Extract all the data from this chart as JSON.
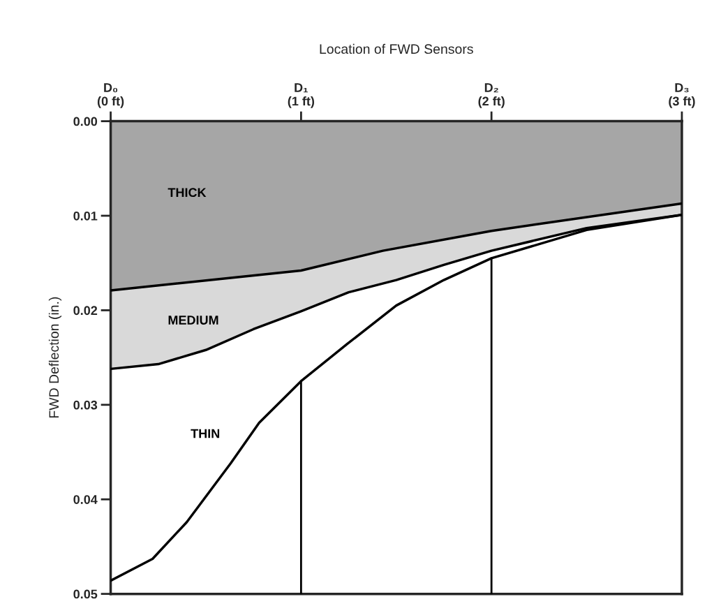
{
  "chart_data": {
    "type": "line",
    "xlabel": "Location of FWD Sensors",
    "ylabel": "FWD Deflection (in.)",
    "xlim": [
      0,
      3
    ],
    "xticks": [
      {
        "value": 0,
        "label": "D₀\n(0 ft)"
      },
      {
        "value": 1,
        "label": "D₁\n(1 ft)"
      },
      {
        "value": 2,
        "label": "D₂\n(2 ft)"
      },
      {
        "value": 3,
        "label": "D₃\n(3 ft)"
      }
    ],
    "ylim": [
      0.05,
      0
    ],
    "yticks": [
      {
        "value": 0,
        "label": "0.00"
      },
      {
        "value": 0.01,
        "label": "0.01"
      },
      {
        "value": 0.02,
        "label": "0.02"
      },
      {
        "value": 0.03,
        "label": "0.03"
      },
      {
        "value": 0.04,
        "label": "0.04"
      },
      {
        "value": 0.05,
        "label": "0.05"
      }
    ],
    "series": [
      {
        "name": "MEDIUM",
        "type": "area",
        "color": "#d9d9d9",
        "x": [
          0,
          0.25,
          0.5,
          0.75,
          1,
          1.25,
          1.5,
          1.75,
          2,
          2.5,
          3
        ],
        "values": [
          0.0262,
          0.0257,
          0.0242,
          0.022,
          0.0201,
          0.0181,
          0.0168,
          0.0152,
          0.0137,
          0.0113,
          0.0099
        ]
      },
      {
        "name": "THICK",
        "type": "area",
        "color": "#a6a6a6",
        "x": [
          0,
          1,
          1.43,
          2,
          3
        ],
        "values": [
          0.0179,
          0.0158,
          0.0137,
          0.0116,
          0.0087
        ]
      },
      {
        "name": "THIN",
        "color": "#000000",
        "x": [
          0,
          0.22,
          0.4,
          0.63,
          0.78,
          1,
          1.24,
          1.5,
          1.75,
          2,
          2.5,
          3
        ],
        "values": [
          0.0486,
          0.0463,
          0.0424,
          0.0362,
          0.0319,
          0.0275,
          0.0236,
          0.0195,
          0.0168,
          0.0145,
          0.0115,
          0.0099
        ]
      }
    ],
    "ref_lines": [
      {
        "axis": "x",
        "value": 1,
        "color": "#000000"
      },
      {
        "axis": "x",
        "value": 2,
        "color": "#000000"
      }
    ],
    "grid": false,
    "legend": false
  }
}
